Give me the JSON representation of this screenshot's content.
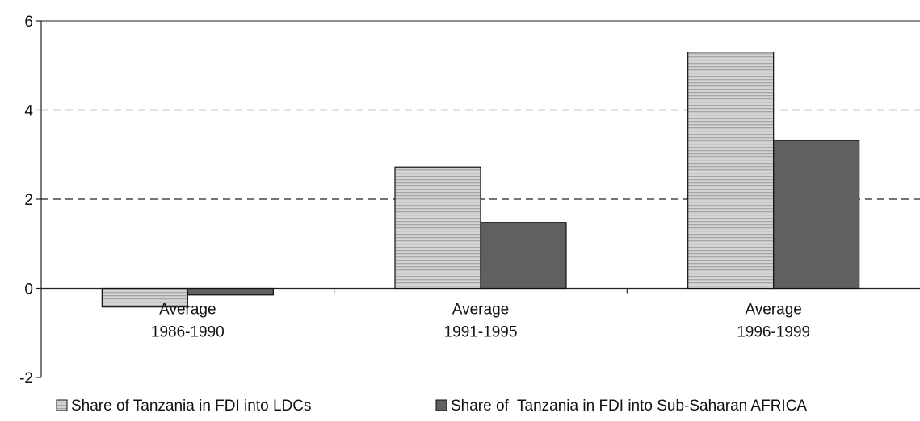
{
  "chart_data": {
    "type": "bar",
    "categories": [
      [
        "Average",
        "1986-1990"
      ],
      [
        "Average",
        "1991-1995"
      ],
      [
        "Average",
        "1996-1999"
      ]
    ],
    "series": [
      {
        "name": "Share of Tanzania in FDI into LDCs",
        "values": [
          -0.42,
          2.72,
          5.3
        ],
        "color": "#c0c0c0",
        "pattern": "horizontal-stripes"
      },
      {
        "name": "Share of  Tanzania in FDI into Sub-Saharan AFRICA",
        "values": [
          -0.15,
          1.48,
          3.32
        ],
        "color": "#606060",
        "pattern": "solid"
      }
    ],
    "y_ticks": [
      "6",
      "4",
      "2",
      "0",
      "-2"
    ],
    "ylim": [
      -2,
      6
    ],
    "gridlines": [
      2,
      4
    ],
    "grid_style": "dashed",
    "legend_position": "bottom"
  }
}
